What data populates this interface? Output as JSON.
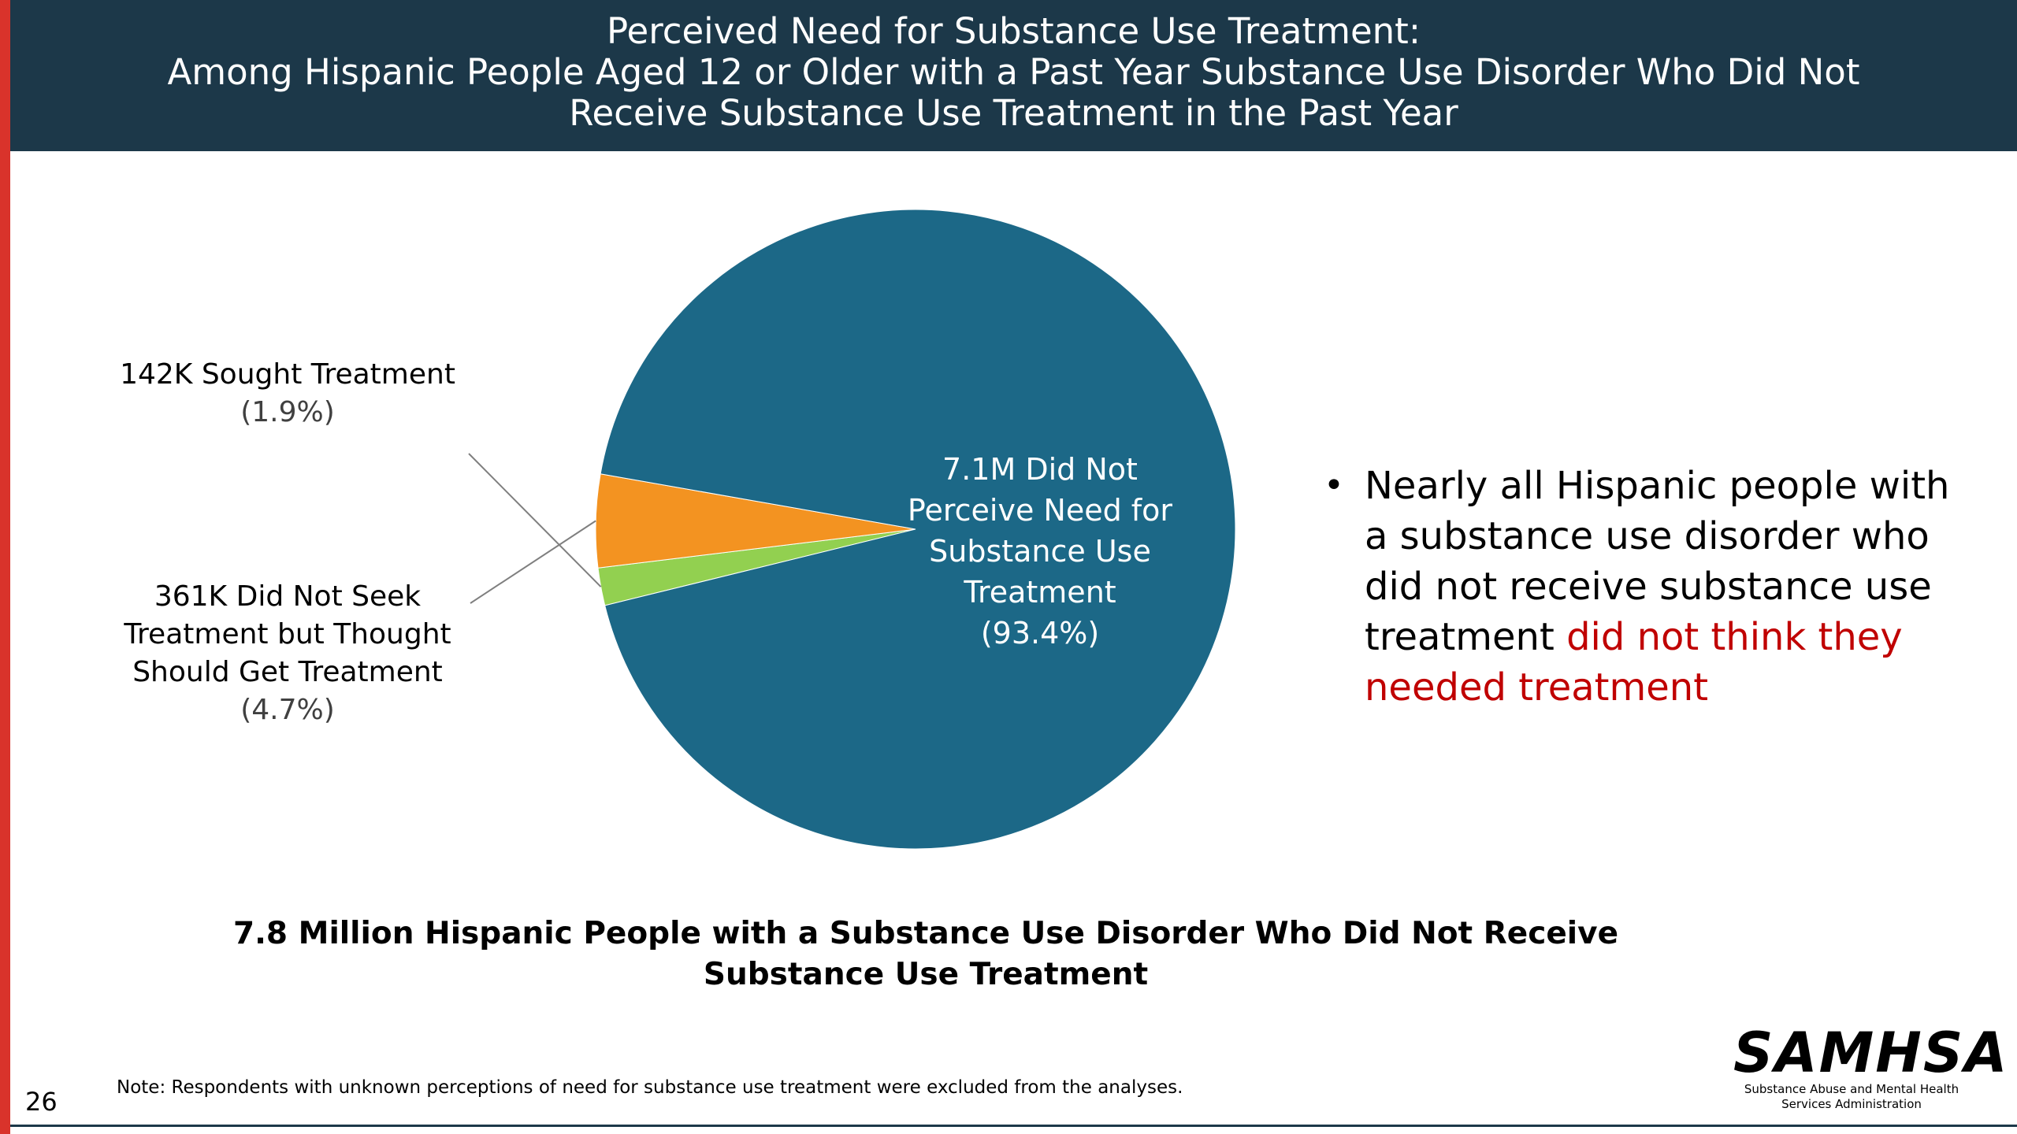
{
  "header": {
    "title_line1": "Perceived Need for Substance Use Treatment:",
    "title_line2": "Among Hispanic People Aged 12 or Older with a Past Year Substance Use Disorder Who Did Not",
    "title_line3": "Receive Substance Use Treatment in the Past Year"
  },
  "chart_data": {
    "type": "pie",
    "title": "Perceived Need for Substance Use Treatment: Among Hispanic People Aged 12 or Older with a Past Year Substance Use Disorder Who Did Not Receive Substance Use Treatment in the Past Year",
    "total_label": "7.8 Million Hispanic People with a Substance Use Disorder Who Did Not Receive Substance Use Treatment",
    "slices": [
      {
        "label_lines": [
          "142K Sought Treatment"
        ],
        "count": "142K",
        "percent": 1.9,
        "percent_text": "(1.9%)",
        "color": "#92d050"
      },
      {
        "label_lines": [
          "361K Did Not Seek",
          "Treatment but Thought",
          "Should Get Treatment"
        ],
        "count": "361K",
        "percent": 4.7,
        "percent_text": "(4.7%)",
        "color": "#f39321"
      },
      {
        "label_lines": [
          "7.1M Did Not",
          "Perceive Need for",
          "Substance Use",
          "Treatment"
        ],
        "count": "7.1M",
        "percent": 93.4,
        "percent_text": "(93.4%)",
        "color": "#1c6887"
      }
    ]
  },
  "bullet": {
    "text_normal": "Nearly all Hispanic people with a substance use disorder who did not receive substance use treatment ",
    "text_highlight": "did not think they needed treatment",
    "highlight_color": "#c00000"
  },
  "footer": {
    "note": "Note: Respondents with unknown perceptions of need for substance use treatment were excluded from the analyses.",
    "page_number": "26",
    "logo_word": "SAMHSA",
    "logo_sub_line1": "Substance Abuse and Mental Health",
    "logo_sub_line2": "Services Administration"
  }
}
